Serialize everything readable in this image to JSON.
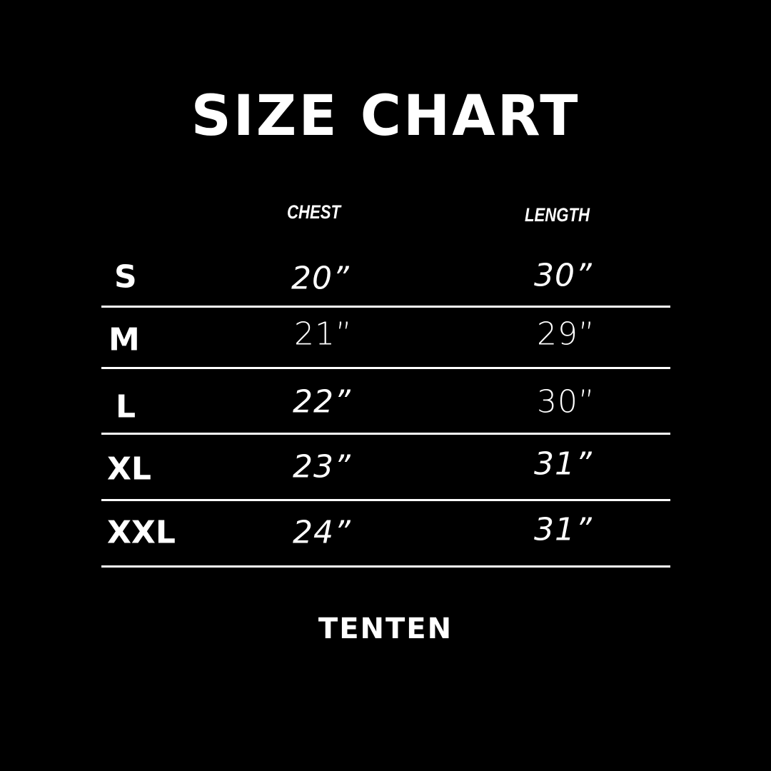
{
  "title": "SIZE CHART",
  "columns": {
    "chest": "CHEST",
    "length": "LENGTH"
  },
  "rows": [
    {
      "size": "S",
      "chest": "20”",
      "length": "30”"
    },
    {
      "size": "M",
      "chest": "21”",
      "length": "29”"
    },
    {
      "size": "L",
      "chest": "22”",
      "length": "30”"
    },
    {
      "size": "XL",
      "chest": "23”",
      "length": "31”"
    },
    {
      "size": "XXL",
      "chest": "24”",
      "length": "31”"
    }
  ],
  "brand": "TENTEN",
  "colors": {
    "background": "#000000",
    "text": "#ffffff"
  }
}
